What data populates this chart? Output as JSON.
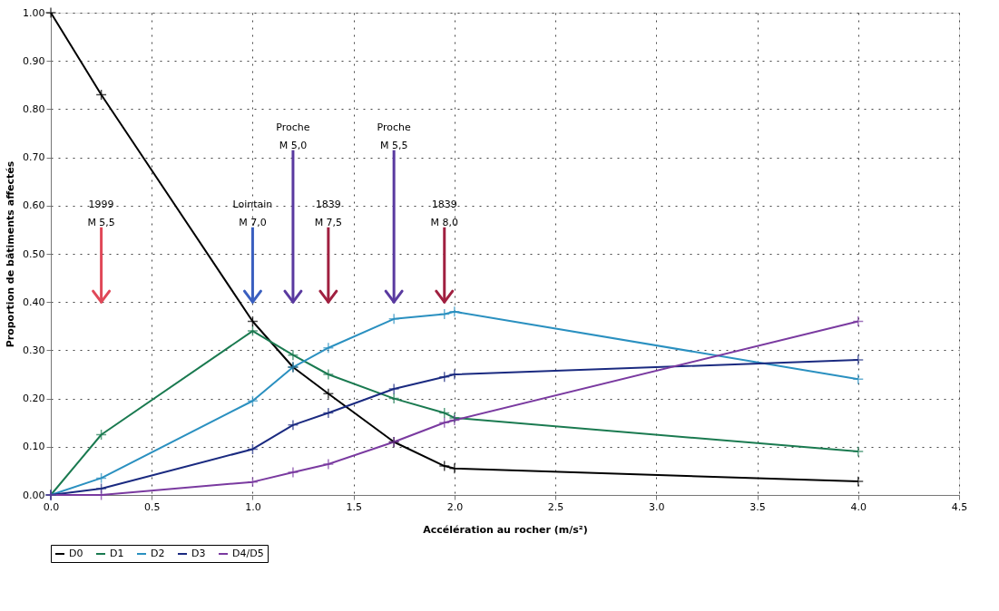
{
  "chart_data": {
    "type": "line",
    "xlabel": "Accélération au rocher (m/s²)",
    "ylabel": "Proportion de bâtiments affectés",
    "x": [
      0,
      0.25,
      1.0,
      1.2,
      1.375,
      1.7,
      1.95,
      2.0,
      4.0
    ],
    "series": [
      {
        "name": "D0",
        "color": "#000000",
        "values": [
          1.0,
          0.83,
          0.36,
          0.265,
          0.21,
          0.11,
          0.06,
          0.055,
          0.028
        ]
      },
      {
        "name": "D1",
        "color": "#1a7a50",
        "values": [
          0,
          0.125,
          0.34,
          0.29,
          0.25,
          0.2,
          0.17,
          0.16,
          0.09
        ]
      },
      {
        "name": "D2",
        "color": "#2a90c0",
        "values": [
          0,
          0.035,
          0.195,
          0.265,
          0.305,
          0.365,
          0.375,
          0.38,
          0.24
        ]
      },
      {
        "name": "D3",
        "color": "#1a2a80",
        "values": [
          0,
          0.013,
          0.095,
          0.145,
          0.17,
          0.22,
          0.245,
          0.25,
          0.28
        ]
      },
      {
        "name": "D4/D5",
        "color": "#7a3aa0",
        "values": [
          0,
          0,
          0.027,
          0.047,
          0.064,
          0.11,
          0.15,
          0.155,
          0.36
        ]
      }
    ],
    "xlim": [
      0,
      4.5
    ],
    "xticks": [
      {
        "value": 0,
        "label": "0.0"
      },
      {
        "value": 0.5,
        "label": "0.5"
      },
      {
        "value": 1,
        "label": "1.0"
      },
      {
        "value": 1.5,
        "label": "1.5"
      },
      {
        "value": 2,
        "label": "2.0"
      },
      {
        "value": 2.5,
        "label": "2.5"
      },
      {
        "value": 3,
        "label": "3.0"
      },
      {
        "value": 3.5,
        "label": "3.5"
      },
      {
        "value": 4,
        "label": "4.0"
      },
      {
        "value": 4.5,
        "label": "4.5"
      }
    ],
    "ylim": [
      0,
      1
    ],
    "yticks": [
      {
        "value": 0,
        "label": "0.00"
      },
      {
        "value": 0.1,
        "label": "0.10"
      },
      {
        "value": 0.2,
        "label": "0.20"
      },
      {
        "value": 0.3,
        "label": "0.30"
      },
      {
        "value": 0.4,
        "label": "0.40"
      },
      {
        "value": 0.5,
        "label": "0.50"
      },
      {
        "value": 0.6,
        "label": "0.60"
      },
      {
        "value": 0.7,
        "label": "0.70"
      },
      {
        "value": 0.8,
        "label": "0.80"
      },
      {
        "value": 0.9,
        "label": "0.90"
      },
      {
        "value": 1,
        "label": "1.00"
      }
    ],
    "ref_lines": [
      {
        "axis": "x",
        "value": 0.25,
        "label": "1999\nM 5,5",
        "color": "#e04858"
      },
      {
        "axis": "x",
        "value": 1.0,
        "label": "Lointain\nM 7,0",
        "color": "#3a5fc0"
      },
      {
        "axis": "x",
        "value": 1.2,
        "label": "Proche\nM 5,0",
        "color": "#5a3aa0"
      },
      {
        "axis": "x",
        "value": 1.375,
        "label": "1839\nM 7,5",
        "color": "#a02040"
      },
      {
        "axis": "x",
        "value": 1.7,
        "label": "Proche\nM 5,5",
        "color": "#5a3aa0"
      },
      {
        "axis": "x",
        "value": 1.95,
        "label": "1839\nM 8,0",
        "color": "#a02040"
      }
    ],
    "grid": true,
    "legend": "bottom",
    "marker": "cross",
    "line_style": "solid"
  }
}
